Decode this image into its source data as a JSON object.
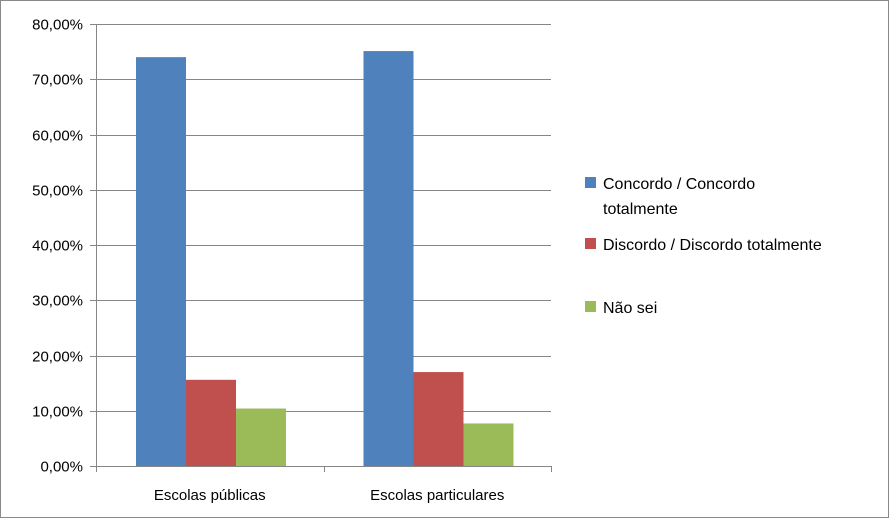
{
  "chart_data": {
    "type": "bar",
    "categories": [
      "Escolas públicas",
      "Escolas particulares"
    ],
    "series": [
      {
        "name": "Concordo / Concordo totalmente",
        "values": [
          74.0,
          75.1
        ],
        "color": "#4F81BD"
      },
      {
        "name": "Discordo / Discordo totalmente",
        "values": [
          15.6,
          17.0
        ],
        "color": "#C0504D"
      },
      {
        "name": "Não sei",
        "values": [
          10.4,
          7.7
        ],
        "color": "#9BBB59"
      }
    ],
    "ylim": [
      0,
      80
    ],
    "yticks": [
      0,
      10,
      20,
      30,
      40,
      50,
      60,
      70,
      80
    ],
    "ytick_labels": [
      "0,00%",
      "10,00%",
      "20,00%",
      "30,00%",
      "40,00%",
      "50,00%",
      "60,00%",
      "70,00%",
      "80,00%"
    ],
    "grid": true,
    "legend_position": "right",
    "legend_lines": [
      [
        "Concordo / Concordo",
        "totalmente"
      ],
      [
        "Discordo / Discordo totalmente"
      ],
      [
        "Não sei"
      ]
    ]
  }
}
